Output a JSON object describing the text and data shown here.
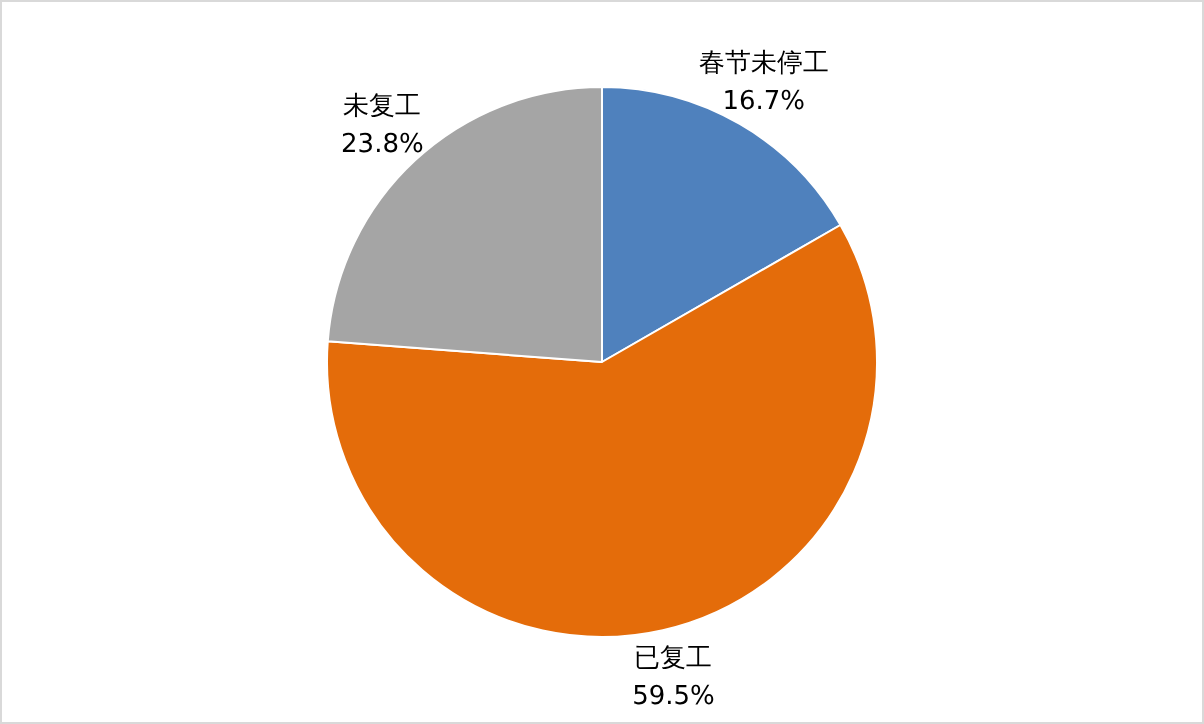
{
  "chart_data": {
    "type": "pie",
    "categories": [
      "春节未停工",
      "已复工",
      "未复工"
    ],
    "values": [
      16.7,
      59.5,
      23.8
    ],
    "value_labels": [
      "16.7%",
      "59.5%",
      "23.8%"
    ],
    "colors": [
      "#4f81bd",
      "#e46c0a",
      "#a5a5a5"
    ],
    "legend": false
  }
}
